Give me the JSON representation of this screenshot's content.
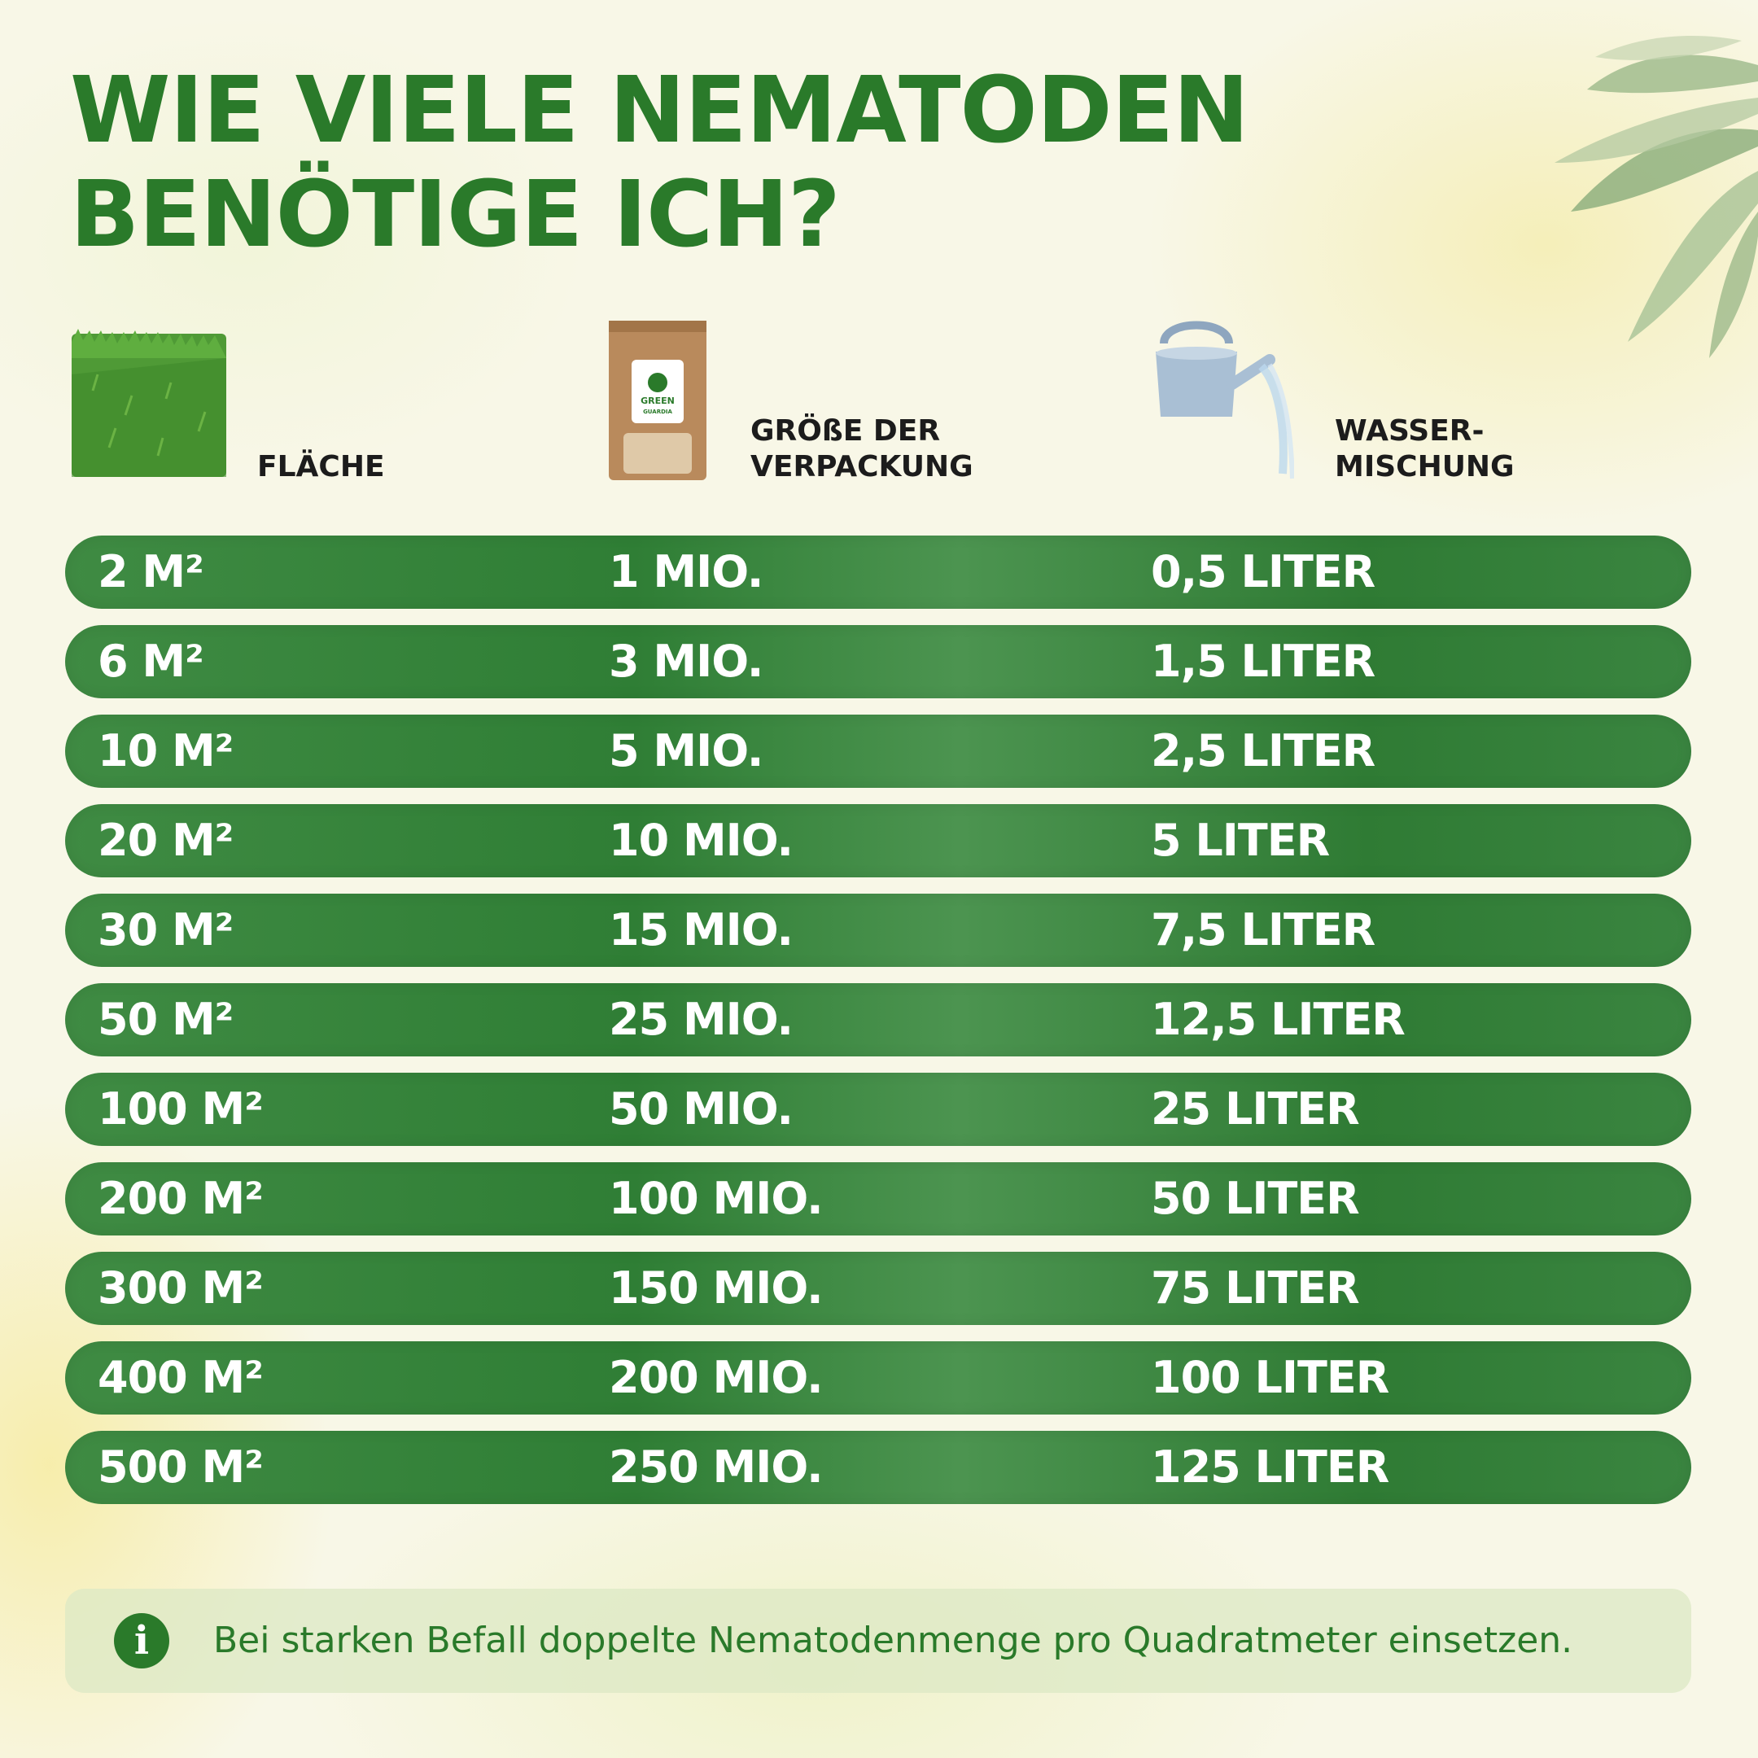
{
  "title": {
    "line1": "WIE VIELE NEMATODEN",
    "line2": "BENÖTIGE ICH?"
  },
  "columns": {
    "area": {
      "label": "FLÄCHE",
      "icon": "grass-icon"
    },
    "package": {
      "label1": "GRÖßE DER",
      "label2": "VERPACKUNG",
      "icon": "package-icon",
      "brand1": "GREEN",
      "brand2": "GUARDIA"
    },
    "water": {
      "label1": "WASSER-",
      "label2": "MISCHUNG",
      "icon": "watering-can-icon"
    }
  },
  "rows": [
    {
      "area": "2 M²",
      "package": "1 MIO.",
      "water": "0,5 LITER"
    },
    {
      "area": "6 M²",
      "package": "3 MIO.",
      "water": "1,5 LITER"
    },
    {
      "area": "10 M²",
      "package": "5 MIO.",
      "water": "2,5 LITER"
    },
    {
      "area": "20 M²",
      "package": "10 MIO.",
      "water": "5 LITER"
    },
    {
      "area": "30 M²",
      "package": "15 MIO.",
      "water": "7,5 LITER"
    },
    {
      "area": "50 M²",
      "package": "25 MIO.",
      "water": "12,5 LITER"
    },
    {
      "area": "100 M²",
      "package": "50 MIO.",
      "water": "25 LITER"
    },
    {
      "area": "200 M²",
      "package": "100 MIO.",
      "water": "50 LITER"
    },
    {
      "area": "300 M²",
      "package": "150 MIO.",
      "water": "75 LITER"
    },
    {
      "area": "400 M²",
      "package": "200 MIO.",
      "water": "100 LITER"
    },
    {
      "area": "500 M²",
      "package": "250 MIO.",
      "water": "125 LITER"
    }
  ],
  "note": {
    "icon": "info-icon",
    "icon_glyph": "i",
    "text": "Bei starken Befall doppelte Nematodenmenge pro Quadratmeter einsetzen."
  },
  "colors": {
    "primary_green": "#2a7a2a",
    "row_green": "#3a8540",
    "background": "#f8f7e7"
  }
}
